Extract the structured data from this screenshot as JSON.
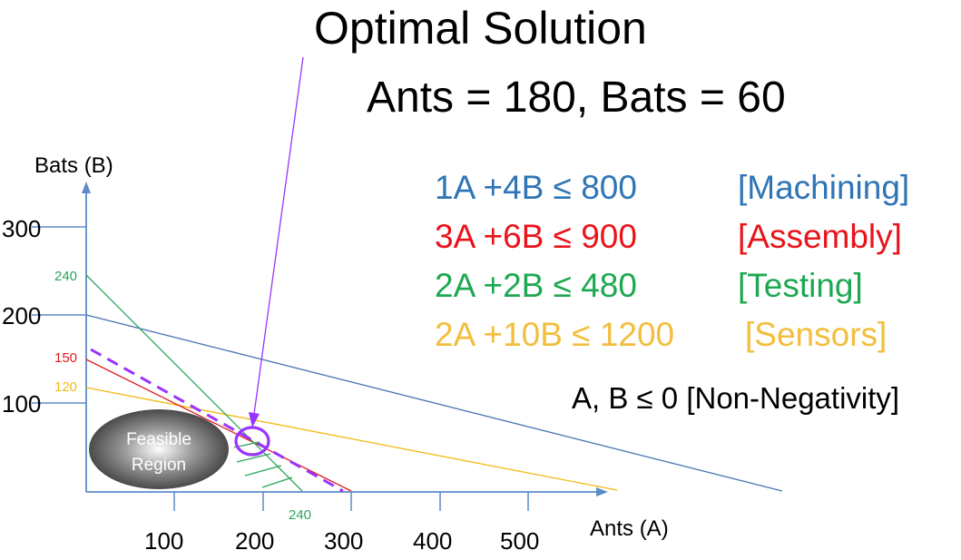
{
  "title": "Optimal Solution",
  "subtitle": "Ants = 180, Bats = 60",
  "axes": {
    "y_label": "Bats (B)",
    "x_label": "Ants (A)",
    "y_ticks": [
      "100",
      "200",
      "300"
    ],
    "x_ticks": [
      "100",
      "200",
      "300",
      "400",
      "500"
    ]
  },
  "intercepts": {
    "assembly_b": "150",
    "testing_b": "240",
    "sensors_b": "120",
    "testing_a": "240"
  },
  "feasible_region_label_1": "Feasible",
  "feasible_region_label_2": "Region",
  "constraints": [
    {
      "expr": "1A +4B ≤ 800",
      "name": "[Machining]",
      "color": "#2E75B6"
    },
    {
      "expr": "3A +6B ≤ 900",
      "name": "[Assembly]",
      "color": "#E8141B"
    },
    {
      "expr": "2A +2B ≤ 480",
      "name": "[Testing]",
      "color": "#1DA851"
    },
    {
      "expr": "2A +10B ≤ 1200",
      "name": "[Sensors]",
      "color": "#F2BE3C"
    }
  ],
  "non_negativity": "A, B ≤ 0 [Non-Negativity]",
  "colors": {
    "axis": "#5B8BC9",
    "machining": "#4A76B4",
    "assembly": "#E21A1A",
    "testing": "#2AA55B",
    "sensors": "#F2BA10",
    "optimal": "#9933FF"
  }
}
